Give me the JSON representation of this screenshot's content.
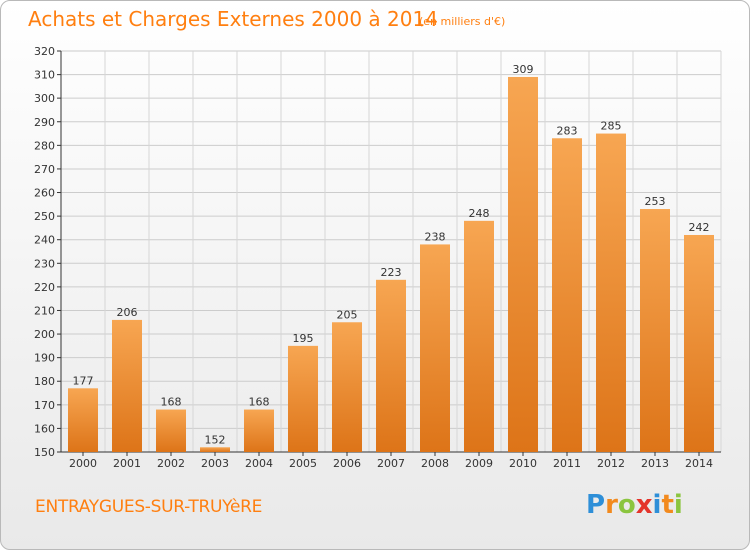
{
  "title": "Achats et Charges Externes 2000 à 2014",
  "subtitle": "(en milliers d'€)",
  "place": "ENTRAYGUES-SUR-TRUYèRE",
  "logo": {
    "letters": [
      "P",
      "r",
      "o",
      "x",
      "i",
      "t",
      "i"
    ],
    "colors": [
      "#2e8fd8",
      "#f28a1e",
      "#8bc53f",
      "#e4342b",
      "#2e8fd8",
      "#f28a1e",
      "#8bc53f"
    ]
  },
  "colors": {
    "bar_light": "#f7a24e",
    "bar_dark": "#e07a1e",
    "accent": "#ff7f10",
    "grid": "#cfcfcf"
  },
  "chart_data": {
    "type": "bar",
    "categories": [
      "2000",
      "2001",
      "2002",
      "2003",
      "2004",
      "2005",
      "2006",
      "2007",
      "2008",
      "2009",
      "2010",
      "2011",
      "2012",
      "2013",
      "2014"
    ],
    "values": [
      177,
      206,
      168,
      152,
      168,
      195,
      205,
      223,
      238,
      248,
      309,
      283,
      285,
      253,
      242
    ],
    "ylim": [
      150,
      320
    ],
    "yticks": [
      150,
      160,
      170,
      180,
      190,
      200,
      210,
      220,
      230,
      240,
      250,
      260,
      270,
      280,
      290,
      300,
      310,
      320
    ],
    "grid": true
  }
}
